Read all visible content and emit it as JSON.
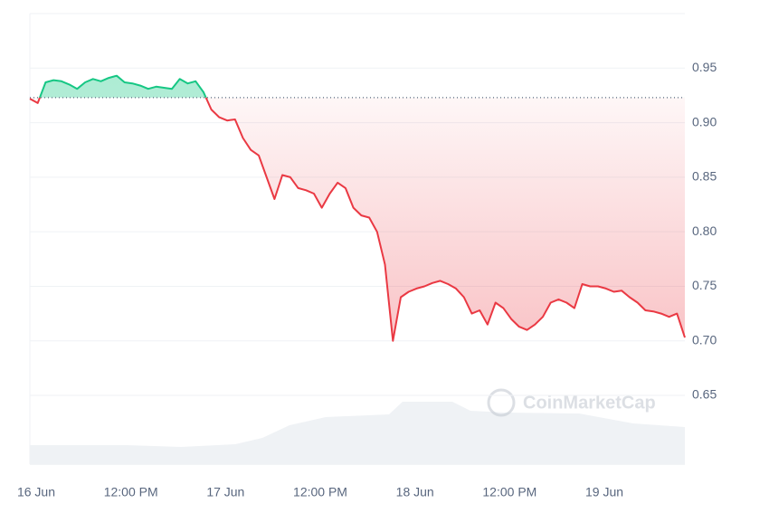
{
  "chart_data": {
    "type": "line",
    "watermark": "CoinMarketCap",
    "categories": [
      "16 Jun",
      null,
      null,
      null,
      null,
      null,
      null,
      null,
      null,
      null,
      null,
      null,
      "12:00 PM",
      null,
      null,
      null,
      null,
      null,
      null,
      null,
      null,
      null,
      null,
      null,
      "17 Jun",
      null,
      null,
      null,
      null,
      null,
      null,
      null,
      null,
      null,
      null,
      null,
      "12:00 PM",
      null,
      null,
      null,
      null,
      null,
      null,
      null,
      null,
      null,
      null,
      null,
      "18 Jun",
      null,
      null,
      null,
      null,
      null,
      null,
      null,
      null,
      null,
      null,
      null,
      "12:00 PM",
      null,
      null,
      null,
      null,
      null,
      null,
      null,
      null,
      null,
      null,
      null,
      "19 Jun",
      null,
      null,
      null,
      null,
      null,
      null,
      null,
      null,
      null,
      null,
      null
    ],
    "values": [
      0.922,
      0.918,
      0.937,
      0.939,
      0.938,
      0.935,
      0.931,
      0.937,
      0.94,
      0.938,
      0.941,
      0.943,
      0.937,
      0.936,
      0.934,
      0.931,
      0.933,
      0.932,
      0.931,
      0.94,
      0.936,
      0.938,
      0.928,
      0.912,
      0.905,
      0.902,
      0.903,
      0.886,
      0.875,
      0.87,
      0.85,
      0.83,
      0.852,
      0.85,
      0.84,
      0.838,
      0.835,
      0.822,
      0.835,
      0.845,
      0.84,
      0.822,
      0.815,
      0.813,
      0.8,
      0.77,
      0.7,
      0.74,
      0.745,
      0.748,
      0.75,
      0.753,
      0.755,
      0.752,
      0.748,
      0.74,
      0.725,
      0.728,
      0.715,
      0.735,
      0.73,
      0.72,
      0.713,
      0.71,
      0.715,
      0.722,
      0.735,
      0.738,
      0.735,
      0.73,
      0.752,
      0.75,
      0.75,
      0.748,
      0.745,
      0.746,
      0.74,
      0.735,
      0.728,
      0.727,
      0.725,
      0.722,
      0.725,
      0.703
    ],
    "baseline": 0.923,
    "up_color": "#16c784",
    "down_color": "#ea3943",
    "ylim": [
      0.587,
      1.0
    ],
    "yticks": [
      0.65,
      {
        "value": 0.7,
        "label": "0.70"
      },
      0.75,
      {
        "value": 0.8,
        "label": "0.80"
      },
      0.85,
      {
        "value": 0.9,
        "label": "0.90"
      },
      0.95
    ],
    "grid": true
  }
}
